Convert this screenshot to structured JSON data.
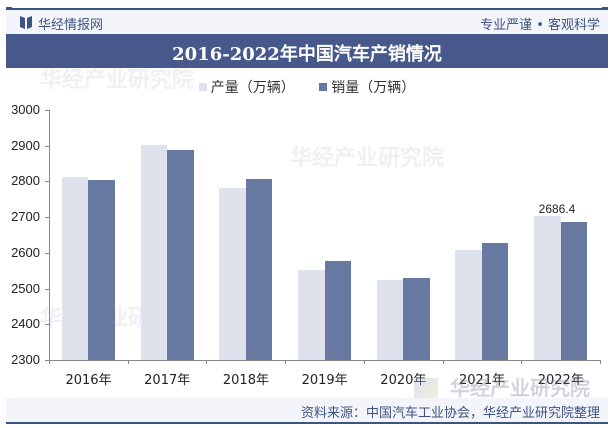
{
  "header": {
    "brand": "华经情报网",
    "slogan": "专业严谨 • 客观科学"
  },
  "title": "2016-2022年中国汽车产销情况",
  "legend": [
    {
      "label": "产量（万辆）",
      "color": "#dde2ec"
    },
    {
      "label": "销量（万辆）",
      "color": "#6779a0"
    }
  ],
  "footer": {
    "source": "资料来源：中国汽车工业协会，华经产业研究院整理"
  },
  "watermark": {
    "name": "华经产业研究院",
    "url": "www.huaon.com"
  },
  "chart_data": {
    "type": "bar",
    "title": "2016-2022年中国汽车产销情况",
    "xlabel": "",
    "ylabel": "",
    "categories": [
      "2016年",
      "2017年",
      "2018年",
      "2019年",
      "2020年",
      "2021年",
      "2022年"
    ],
    "series": [
      {
        "name": "产量（万辆）",
        "color": "#dde2ec",
        "values": [
          2812,
          2902,
          2781,
          2553,
          2523,
          2608,
          2702
        ]
      },
      {
        "name": "销量（万辆）",
        "color": "#6779a0",
        "values": [
          2803,
          2888,
          2808,
          2577,
          2531,
          2628,
          2686.4
        ]
      }
    ],
    "annotations": [
      {
        "category": "2022年",
        "series": "销量（万辆）",
        "text": "2686.4"
      }
    ],
    "ylim": [
      2300,
      3000
    ],
    "yticks": [
      2300,
      2400,
      2500,
      2600,
      2700,
      2800,
      2900,
      3000
    ],
    "grid": false,
    "legend_position": "top"
  }
}
